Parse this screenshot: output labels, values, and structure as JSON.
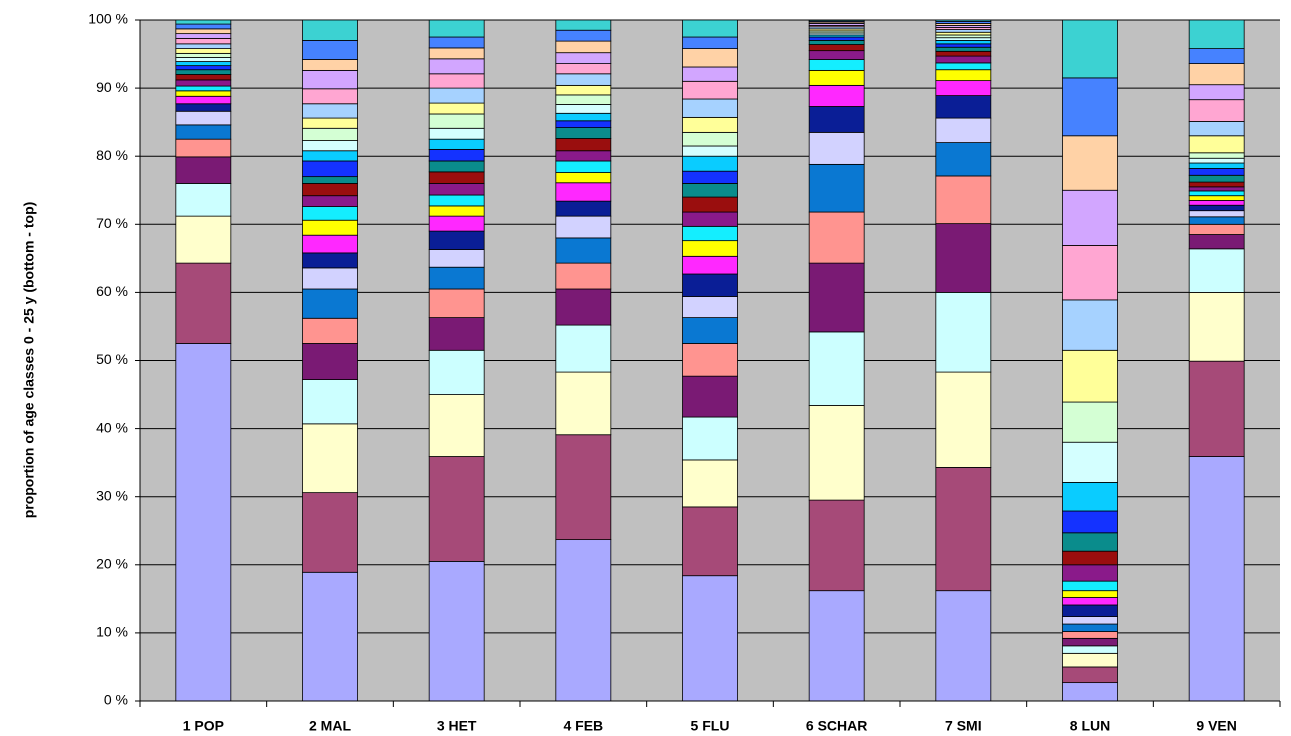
{
  "chart_data": {
    "type": "stacked_bar",
    "y_label": "proportion of age classes 0 - 25 y (bottom - top)",
    "categories": [
      "1 POP",
      "2 MAL",
      "3 HET",
      "4 FEB",
      "5 FLU",
      "6 SCHAR",
      "7 SMI",
      "8 LUN",
      "9 VEN"
    ],
    "ylim": [
      0,
      100
    ],
    "yticks": [
      {
        "value": 0,
        "label": "0 %"
      },
      {
        "value": 10,
        "label": "10 %"
      },
      {
        "value": 20,
        "label": "20 %"
      },
      {
        "value": 30,
        "label": "30 %"
      },
      {
        "value": 40,
        "label": "40 %"
      },
      {
        "value": 50,
        "label": "50 %"
      },
      {
        "value": 60,
        "label": "60 %"
      },
      {
        "value": 70,
        "label": "70 %"
      },
      {
        "value": 80,
        "label": "80 %"
      },
      {
        "value": 90,
        "label": "90 %"
      },
      {
        "value": 100,
        "label": "100 %"
      }
    ],
    "grid": true,
    "series": [
      {
        "color": "#A9A9FF",
        "values": [
          52.5,
          18.9,
          20.5,
          23.7,
          18.4,
          16.2,
          16.2,
          2.7,
          35.9
        ]
      },
      {
        "color": "#A64A78",
        "values": [
          11.8,
          11.7,
          15.4,
          15.4,
          10.1,
          13.3,
          18.1,
          2.3,
          14.0
        ]
      },
      {
        "color": "#FFFFCC",
        "values": [
          6.9,
          10.1,
          9.1,
          9.2,
          6.9,
          13.9,
          14.0,
          2.0,
          10.1
        ]
      },
      {
        "color": "#CCFFFF",
        "values": [
          4.8,
          6.5,
          6.5,
          6.9,
          6.3,
          10.8,
          11.7,
          1.1,
          6.4
        ]
      },
      {
        "color": "#7A1A74",
        "values": [
          3.9,
          5.3,
          4.8,
          5.3,
          6.0,
          10.1,
          10.1,
          1.1,
          2.1
        ]
      },
      {
        "color": "#FF9490",
        "values": [
          2.6,
          3.7,
          4.2,
          3.8,
          4.8,
          7.5,
          7.0,
          1.0,
          1.5
        ]
      },
      {
        "color": "#0A78D2",
        "values": [
          2.1,
          4.3,
          3.2,
          3.7,
          3.8,
          7.0,
          4.9,
          1.1,
          1.1
        ]
      },
      {
        "color": "#D2D2FF",
        "values": [
          2.0,
          3.1,
          2.6,
          3.2,
          3.1,
          4.7,
          3.6,
          1.1,
          0.9
        ]
      },
      {
        "color": "#0A1E96",
        "values": [
          1.1,
          2.2,
          2.7,
          2.2,
          3.3,
          3.8,
          3.3,
          1.7,
          0.8
        ]
      },
      {
        "color": "#FF28FF",
        "values": [
          1.1,
          2.6,
          2.2,
          2.7,
          2.6,
          3.1,
          2.2,
          1.1,
          0.7
        ]
      },
      {
        "color": "#FFFF00",
        "values": [
          0.8,
          2.2,
          1.5,
          1.5,
          2.3,
          2.2,
          1.6,
          1.0,
          0.7
        ]
      },
      {
        "color": "#14EEFF",
        "values": [
          0.7,
          2.0,
          1.6,
          1.7,
          2.1,
          1.6,
          1.0,
          1.4,
          0.7
        ]
      },
      {
        "color": "#8A1A8A",
        "values": [
          0.9,
          1.6,
          1.7,
          1.5,
          2.1,
          1.3,
          1.0,
          2.4,
          0.6
        ]
      },
      {
        "color": "#9A0E0E",
        "values": [
          0.8,
          1.8,
          1.7,
          1.8,
          2.2,
          0.9,
          0.7,
          2.0,
          0.7
        ]
      },
      {
        "color": "#0A8C8C",
        "values": [
          0.7,
          1.0,
          1.6,
          1.6,
          2.0,
          0.6,
          0.6,
          2.7,
          1.0
        ]
      },
      {
        "color": "#1432FF",
        "values": [
          0.6,
          2.3,
          1.7,
          1.0,
          1.8,
          0.5,
          0.5,
          3.2,
          1.0
        ]
      },
      {
        "color": "#0ACCFF",
        "values": [
          0.6,
          1.5,
          1.5,
          1.1,
          2.2,
          0.3,
          0.5,
          4.2,
          0.8
        ]
      },
      {
        "color": "#D4FFFF",
        "values": [
          0.6,
          1.5,
          1.6,
          1.3,
          1.5,
          0.3,
          0.4,
          5.9,
          0.7
        ]
      },
      {
        "color": "#D4FFD4",
        "values": [
          0.6,
          1.8,
          2.1,
          1.4,
          2.0,
          0.3,
          0.4,
          5.9,
          0.8
        ]
      },
      {
        "color": "#FFFF99",
        "values": [
          0.7,
          1.5,
          1.6,
          1.4,
          2.2,
          0.3,
          0.4,
          7.6,
          2.5
        ]
      },
      {
        "color": "#A6D2FF",
        "values": [
          0.7,
          2.1,
          2.2,
          1.7,
          2.7,
          0.3,
          0.4,
          7.4,
          2.1
        ]
      },
      {
        "color": "#FFA6D2",
        "values": [
          0.8,
          2.2,
          2.1,
          1.5,
          2.6,
          0.2,
          0.3,
          8.0,
          3.2
        ]
      },
      {
        "color": "#D2A6FF",
        "values": [
          0.7,
          2.7,
          2.2,
          1.6,
          2.1,
          0.3,
          0.3,
          8.1,
          2.2
        ]
      },
      {
        "color": "#FFD2A6",
        "values": [
          0.7,
          1.6,
          1.6,
          1.7,
          2.7,
          0.2,
          0.3,
          8.0,
          3.1
        ]
      },
      {
        "color": "#4682FF",
        "values": [
          0.7,
          2.8,
          1.6,
          1.6,
          1.7,
          0.15,
          0.3,
          8.5,
          2.2
        ]
      },
      {
        "color": "#3CD2D2",
        "values": [
          0.6,
          3.0,
          2.5,
          1.5,
          2.5,
          0.15,
          0.2,
          8.5,
          4.2
        ]
      }
    ]
  }
}
